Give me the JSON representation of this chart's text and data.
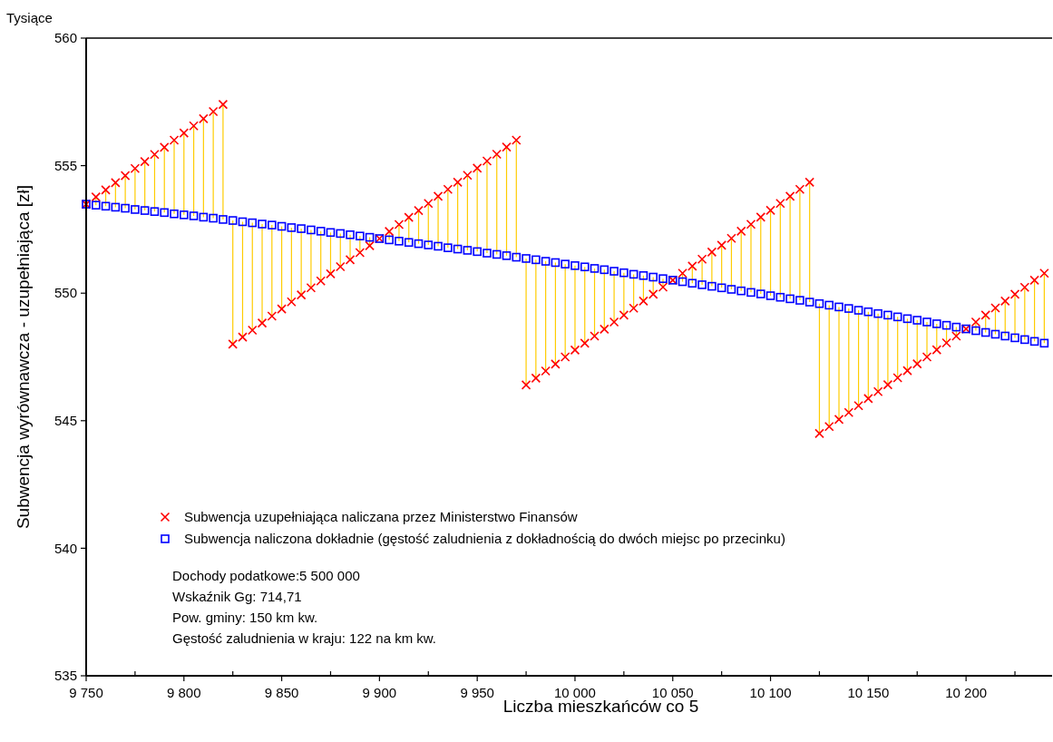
{
  "chart_data": {
    "type": "scatter",
    "xlabel": "Liczba mieszkańców co 5",
    "ylabel": "Subwencja wyrównawcza - uzupełniająca [zł]",
    "annotations": [
      "Tysiące",
      "Dochody podatkowe:5 500 000",
      "Wskaźnik Gg: 714,71",
      "Pow. gminy: 150 km kw.",
      "Gęstość zaludnienia w kraju: 122 na km kw."
    ],
    "x": [
      9750,
      9755,
      9760,
      9765,
      9770,
      9775,
      9780,
      9785,
      9790,
      9795,
      9800,
      9805,
      9810,
      9815,
      9820,
      9825,
      9830,
      9835,
      9840,
      9845,
      9850,
      9855,
      9860,
      9865,
      9870,
      9875,
      9880,
      9885,
      9890,
      9895,
      9900,
      9905,
      9910,
      9915,
      9920,
      9925,
      9930,
      9935,
      9940,
      9945,
      9950,
      9955,
      9960,
      9965,
      9970,
      9975,
      9980,
      9985,
      9990,
      9995,
      10000,
      10005,
      10010,
      10015,
      10020,
      10025,
      10030,
      10035,
      10040,
      10045,
      10050,
      10055,
      10060,
      10065,
      10070,
      10075,
      10080,
      10085,
      10090,
      10095,
      10100,
      10105,
      10110,
      10115,
      10120,
      10125,
      10130,
      10135,
      10140,
      10145,
      10150,
      10155,
      10160,
      10165,
      10170,
      10175,
      10180,
      10185,
      10190,
      10195,
      10200,
      10205,
      10210,
      10215,
      10220,
      10225,
      10230,
      10235,
      10240
    ],
    "series": [
      {
        "name": "Subwencja uzupełniająca naliczana przez Ministerstwo Finansów",
        "color": "#ff0000",
        "marker": "cross",
        "values": [
          553.49,
          553.77,
          554.05,
          554.33,
          554.61,
          554.89,
          555.16,
          555.44,
          555.72,
          556.0,
          556.28,
          556.56,
          556.84,
          557.12,
          557.4,
          548.0,
          548.28,
          548.55,
          548.83,
          549.1,
          549.38,
          549.66,
          549.93,
          550.21,
          550.48,
          550.76,
          551.04,
          551.31,
          551.59,
          551.86,
          552.14,
          552.42,
          552.69,
          552.97,
          553.24,
          553.52,
          553.8,
          554.07,
          554.35,
          554.62,
          554.9,
          555.18,
          555.45,
          555.73,
          556.0,
          546.4,
          546.67,
          546.95,
          547.22,
          547.5,
          547.77,
          548.04,
          548.32,
          548.59,
          548.87,
          549.14,
          549.41,
          549.69,
          549.96,
          550.24,
          550.51,
          550.78,
          551.06,
          551.33,
          551.61,
          551.88,
          552.15,
          552.43,
          552.7,
          552.98,
          553.25,
          553.52,
          553.8,
          554.07,
          554.35,
          544.5,
          544.77,
          545.05,
          545.32,
          545.59,
          545.87,
          546.14,
          546.41,
          546.68,
          546.96,
          547.23,
          547.5,
          547.78,
          548.05,
          548.32,
          548.6,
          548.87,
          549.14,
          549.42,
          549.69,
          549.96,
          550.23,
          550.51,
          550.78
        ],
        "errors": [
          null,
          [
            553.45,
            553.77
          ],
          [
            553.41,
            554.05
          ],
          [
            553.37,
            554.33
          ],
          [
            553.33,
            554.61
          ],
          [
            553.28,
            554.89
          ],
          [
            553.24,
            555.16
          ],
          [
            553.2,
            555.44
          ],
          [
            553.16,
            555.72
          ],
          [
            553.11,
            556.0
          ],
          [
            553.07,
            556.28
          ],
          [
            553.03,
            556.56
          ],
          [
            552.98,
            556.84
          ],
          [
            552.94,
            557.12
          ],
          [
            552.89,
            557.4
          ],
          [
            548.0,
            552.85
          ],
          [
            548.28,
            552.8
          ],
          [
            548.55,
            552.76
          ],
          [
            548.83,
            552.71
          ],
          [
            549.1,
            552.67
          ],
          [
            549.38,
            552.62
          ],
          [
            549.66,
            552.57
          ],
          [
            549.93,
            552.53
          ],
          [
            550.21,
            552.48
          ],
          [
            550.48,
            552.43
          ],
          [
            550.76,
            552.38
          ],
          [
            551.04,
            552.34
          ],
          [
            551.31,
            552.29
          ],
          [
            551.59,
            552.24
          ],
          [
            551.86,
            552.19
          ],
          null,
          [
            552.09,
            552.42
          ],
          [
            552.04,
            552.69
          ],
          [
            551.99,
            552.97
          ],
          [
            551.94,
            553.24
          ],
          [
            551.89,
            553.52
          ],
          [
            551.84,
            553.8
          ],
          [
            551.78,
            554.07
          ],
          [
            551.73,
            554.35
          ],
          [
            551.68,
            554.62
          ],
          [
            551.63,
            554.9
          ],
          [
            551.57,
            555.18
          ],
          [
            551.52,
            555.45
          ],
          [
            551.47,
            555.73
          ],
          [
            551.41,
            556.0
          ],
          [
            546.4,
            551.36
          ],
          [
            546.67,
            551.31
          ],
          [
            546.95,
            551.25
          ],
          [
            547.22,
            551.2
          ],
          [
            547.5,
            551.14
          ],
          [
            547.77,
            551.08
          ],
          [
            548.04,
            551.03
          ],
          [
            548.32,
            550.97
          ],
          [
            548.59,
            550.92
          ],
          [
            548.87,
            550.86
          ],
          [
            549.14,
            550.8
          ],
          [
            549.41,
            550.74
          ],
          [
            549.69,
            550.69
          ],
          [
            549.96,
            550.63
          ],
          [
            550.24,
            550.57
          ],
          null,
          [
            550.45,
            550.78
          ],
          [
            550.39,
            551.06
          ],
          [
            550.33,
            551.33
          ],
          [
            550.27,
            551.61
          ],
          [
            550.21,
            551.88
          ],
          [
            550.15,
            552.15
          ],
          [
            550.09,
            552.43
          ],
          [
            550.03,
            552.7
          ],
          [
            549.97,
            552.98
          ],
          [
            549.9,
            553.25
          ],
          [
            549.84,
            553.52
          ],
          [
            549.78,
            553.8
          ],
          [
            549.72,
            554.07
          ],
          [
            549.65,
            554.35
          ],
          [
            544.5,
            549.59
          ],
          [
            544.77,
            549.53
          ],
          [
            545.05,
            549.46
          ],
          [
            545.32,
            549.4
          ],
          [
            545.59,
            549.33
          ],
          [
            545.87,
            549.27
          ],
          [
            546.14,
            549.2
          ],
          [
            546.41,
            549.14
          ],
          [
            546.68,
            549.07
          ],
          [
            546.96,
            549.0
          ],
          [
            547.23,
            548.94
          ],
          [
            547.5,
            548.87
          ],
          [
            547.78,
            548.8
          ],
          [
            548.05,
            548.74
          ],
          [
            548.32,
            548.67
          ],
          null,
          [
            548.53,
            548.87
          ],
          [
            548.46,
            549.14
          ],
          [
            548.39,
            549.42
          ],
          [
            548.32,
            549.69
          ],
          [
            548.25,
            549.96
          ],
          [
            548.18,
            550.23
          ],
          [
            548.11,
            550.51
          ],
          [
            548.04,
            550.78
          ]
        ]
      },
      {
        "name": "Subwencja naliczona dokładnie (gęstość zaludnienia z dokładnością do dwóch miejsc po przecinku)",
        "color": "#0000ff",
        "marker": "square",
        "values": [
          553.49,
          553.45,
          553.41,
          553.37,
          553.33,
          553.28,
          553.24,
          553.2,
          553.16,
          553.11,
          553.07,
          553.03,
          552.98,
          552.94,
          552.89,
          552.85,
          552.8,
          552.76,
          552.71,
          552.67,
          552.62,
          552.57,
          552.53,
          552.48,
          552.43,
          552.38,
          552.34,
          552.29,
          552.24,
          552.19,
          552.14,
          552.09,
          552.04,
          551.99,
          551.94,
          551.89,
          551.84,
          551.78,
          551.73,
          551.68,
          551.63,
          551.57,
          551.52,
          551.47,
          551.41,
          551.36,
          551.31,
          551.25,
          551.2,
          551.14,
          551.08,
          551.03,
          550.97,
          550.92,
          550.86,
          550.8,
          550.74,
          550.69,
          550.63,
          550.57,
          550.51,
          550.45,
          550.39,
          550.33,
          550.27,
          550.21,
          550.15,
          550.09,
          550.03,
          549.97,
          549.9,
          549.84,
          549.78,
          549.72,
          549.65,
          549.59,
          549.53,
          549.46,
          549.4,
          549.33,
          549.27,
          549.2,
          549.14,
          549.07,
          549.0,
          548.94,
          548.87,
          548.8,
          548.74,
          548.67,
          548.6,
          548.53,
          548.46,
          548.39,
          548.32,
          548.25,
          548.18,
          548.11,
          548.04
        ]
      }
    ],
    "xlim": [
      9750,
      10244
    ],
    "xticks": [
      {
        "value": 9750,
        "label": "9 750"
      },
      {
        "value": 9775,
        "label": null
      },
      {
        "value": 9800,
        "label": "9 800"
      },
      {
        "value": 9825,
        "label": null
      },
      {
        "value": 9850,
        "label": "9 850"
      },
      {
        "value": 9875,
        "label": null
      },
      {
        "value": 9900,
        "label": "9 900"
      },
      {
        "value": 9925,
        "label": null
      },
      {
        "value": 9950,
        "label": "9 950"
      },
      {
        "value": 9975,
        "label": null
      },
      {
        "value": 10000,
        "label": "10 000"
      },
      {
        "value": 10025,
        "label": null
      },
      {
        "value": 10050,
        "label": "10 050"
      },
      {
        "value": 10075,
        "label": null
      },
      {
        "value": 10100,
        "label": "10 100"
      },
      {
        "value": 10125,
        "label": null
      },
      {
        "value": 10150,
        "label": "10 150"
      },
      {
        "value": 10175,
        "label": null
      },
      {
        "value": 10200,
        "label": "10 200"
      },
      {
        "value": 10225,
        "label": null
      }
    ],
    "ylim": [
      535,
      560
    ],
    "yticks": [
      535,
      540,
      545,
      550,
      555,
      560
    ],
    "grid": false,
    "legend": "bottom left"
  }
}
